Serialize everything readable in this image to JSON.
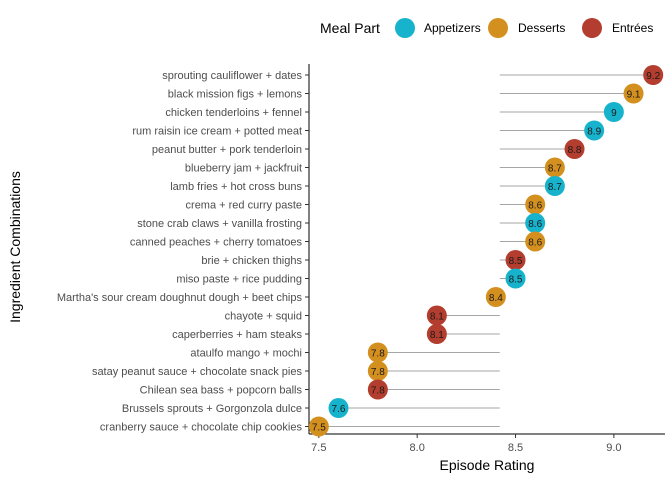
{
  "chart_data": {
    "type": "scatter",
    "xlabel": "Episode Rating",
    "ylabel": "Ingredient Combinations",
    "xlim": [
      7.45,
      9.26
    ],
    "reference_x": 8.42,
    "x_ticks": [
      7.5,
      8.0,
      8.5,
      9.0
    ],
    "x_tick_labels": [
      "7.5",
      "8.0",
      "8.5",
      "9.0"
    ],
    "grid": false,
    "legend": {
      "title": "Meal Part",
      "position": "top",
      "entries": [
        {
          "name": "Appetizers",
          "color": "#17b3cc"
        },
        {
          "name": "Desserts",
          "color": "#d4901f"
        },
        {
          "name": "Entrées",
          "color": "#b33d2e"
        }
      ]
    },
    "points": [
      {
        "label": "sprouting cauliflower +  dates",
        "value": 9.2,
        "value_label": "9.2",
        "group": "Entrées"
      },
      {
        "label": "black mission figs +  lemons",
        "value": 9.1,
        "value_label": "9.1",
        "group": "Desserts"
      },
      {
        "label": "chicken tenderloins +  fennel",
        "value": 9.0,
        "value_label": "9",
        "group": "Appetizers"
      },
      {
        "label": "rum raisin ice cream +  potted meat",
        "value": 8.9,
        "value_label": "8.9",
        "group": "Appetizers"
      },
      {
        "label": "peanut butter +  pork tenderloin",
        "value": 8.8,
        "value_label": "8.8",
        "group": "Entrées"
      },
      {
        "label": "blueberry jam +  jackfruit",
        "value": 8.7,
        "value_label": "8.7",
        "group": "Desserts"
      },
      {
        "label": "lamb fries +  hot cross buns",
        "value": 8.7,
        "value_label": "8.7",
        "group": "Appetizers"
      },
      {
        "label": "crema +  red curry paste",
        "value": 8.6,
        "value_label": "8.6",
        "group": "Desserts"
      },
      {
        "label": "stone crab claws +  vanilla frosting",
        "value": 8.6,
        "value_label": "8.6",
        "group": "Appetizers"
      },
      {
        "label": "canned peaches +  cherry tomatoes",
        "value": 8.6,
        "value_label": "8.6",
        "group": "Desserts"
      },
      {
        "label": "brie +  chicken thighs",
        "value": 8.5,
        "value_label": "8.5",
        "group": "Entrées"
      },
      {
        "label": "miso paste +  rice pudding",
        "value": 8.5,
        "value_label": "8.5",
        "group": "Appetizers"
      },
      {
        "label": "Martha's sour cream doughnut dough +  beet chips",
        "value": 8.4,
        "value_label": "8.4",
        "group": "Desserts"
      },
      {
        "label": "chayote +  squid",
        "value": 8.1,
        "value_label": "8.1",
        "group": "Entrées"
      },
      {
        "label": "caperberries +  ham steaks",
        "value": 8.1,
        "value_label": "8.1",
        "group": "Entrées"
      },
      {
        "label": "ataulfo mango +  mochi",
        "value": 7.8,
        "value_label": "7.8",
        "group": "Desserts"
      },
      {
        "label": "satay peanut sauce +  chocolate snack pies",
        "value": 7.8,
        "value_label": "7.8",
        "group": "Desserts"
      },
      {
        "label": "Chilean sea bass +  popcorn balls",
        "value": 7.8,
        "value_label": "7.8",
        "group": "Entrées"
      },
      {
        "label": "Brussels sprouts +  Gorgonzola dulce",
        "value": 7.6,
        "value_label": "7.6",
        "group": "Appetizers"
      },
      {
        "label": "cranberry sauce +  chocolate chip cookies",
        "value": 7.5,
        "value_label": "7.5",
        "group": "Desserts"
      }
    ]
  }
}
